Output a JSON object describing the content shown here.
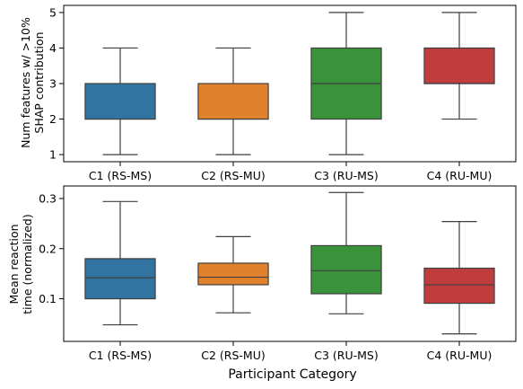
{
  "chart_data": [
    {
      "type": "box",
      "ylabel_lines": [
        "Num features w/ >10%",
        "SHAP contribution"
      ],
      "xlabel": "",
      "categories": [
        "C1 (RS-MS)",
        "C2 (RS-MU)",
        "C3 (RU-MS)",
        "C4 (RU-MU)"
      ],
      "colors": [
        "#3274a1",
        "#e1812c",
        "#3a923a",
        "#c03d3e"
      ],
      "ylim": [
        0.8,
        5.2
      ],
      "yticks": [
        1,
        2,
        3,
        4,
        5
      ],
      "ytick_labels": [
        "1",
        "2",
        "3",
        "4",
        "5"
      ],
      "boxes": [
        {
          "whislo": 1,
          "q1": 2,
          "med": 2,
          "q3": 3,
          "whishi": 4
        },
        {
          "whislo": 1,
          "q1": 2,
          "med": 2,
          "q3": 3,
          "whishi": 4
        },
        {
          "whislo": 1,
          "q1": 2,
          "med": 3,
          "q3": 4,
          "whishi": 5
        },
        {
          "whislo": 2,
          "q1": 3,
          "med": 3,
          "q3": 4,
          "whishi": 5
        }
      ]
    },
    {
      "type": "box",
      "ylabel_lines": [
        "Mean reaction",
        "time (normalized)"
      ],
      "xlabel": "Participant Category",
      "categories": [
        "C1 (RS-MS)",
        "C2 (RS-MU)",
        "C3 (RU-MS)",
        "C4 (RU-MU)"
      ],
      "colors": [
        "#3274a1",
        "#e1812c",
        "#3a923a",
        "#c03d3e"
      ],
      "ylim": [
        0.015,
        0.325
      ],
      "yticks": [
        0.1,
        0.2,
        0.3
      ],
      "ytick_labels": [
        "0.1",
        "0.2",
        "0.3"
      ],
      "boxes": [
        {
          "whislo": 0.048,
          "q1": 0.1,
          "med": 0.142,
          "q3": 0.18,
          "whishi": 0.294
        },
        {
          "whislo": 0.072,
          "q1": 0.128,
          "med": 0.143,
          "q3": 0.171,
          "whishi": 0.224
        },
        {
          "whislo": 0.07,
          "q1": 0.11,
          "med": 0.156,
          "q3": 0.206,
          "whishi": 0.312
        },
        {
          "whislo": 0.03,
          "q1": 0.091,
          "med": 0.128,
          "q3": 0.161,
          "whishi": 0.254
        }
      ]
    }
  ]
}
